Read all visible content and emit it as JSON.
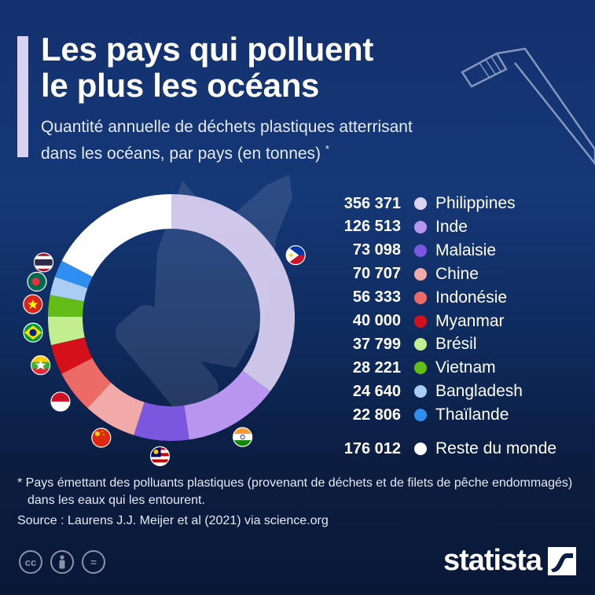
{
  "header": {
    "title_line1": "Les pays qui polluent",
    "title_line2": "le plus les océans",
    "subtitle_line1": "Quantité annuelle de déchets plastiques atterrisant",
    "subtitle_line2": "dans les océans, par pays (en tonnes)",
    "subtitle_marker": "*"
  },
  "chart_data": {
    "type": "pie",
    "unit": "tonnes",
    "categories": [
      "Philippines",
      "Inde",
      "Malaisie",
      "Chine",
      "Indonésie",
      "Myanmar",
      "Brésil",
      "Vietnam",
      "Bangladesh",
      "Thaïlande",
      "Reste du monde"
    ],
    "values": [
      356371,
      126513,
      73098,
      70707,
      56333,
      40000,
      37799,
      28221,
      24640,
      22806,
      176012
    ],
    "value_labels": [
      "356 371",
      "126 513",
      "73 098",
      "70 707",
      "56 333",
      "40 000",
      "37 799",
      "28 221",
      "24 640",
      "22 806",
      "176 012"
    ],
    "colors": [
      "#ddd3f3",
      "#b896f0",
      "#7b57e0",
      "#f2aaa8",
      "#ec6b66",
      "#d4101a",
      "#c2ee8f",
      "#62be17",
      "#a9cdf5",
      "#2f8ff0",
      "#ffffff"
    ],
    "donut": true,
    "legend_position": "right"
  },
  "flags": [
    "philippines-flag",
    "india-flag",
    "malaysia-flag",
    "china-flag",
    "indonesia-flag",
    "myanmar-flag",
    "brazil-flag",
    "vietnam-flag",
    "bangladesh-flag",
    "thailand-flag"
  ],
  "footer": {
    "footnote": "* Pays émettant des polluants plastiques (provenant de déchets et de filets de pêche endommagés) dans les eaux qui les entourent.",
    "source": "Source : Laurens J.J. Meijer et al (2021) via science.org",
    "cc_icons": [
      "cc-icon",
      "person-icon",
      "equals-icon"
    ],
    "cc_label": "cc",
    "eq_label": "=",
    "brand": "statista"
  }
}
